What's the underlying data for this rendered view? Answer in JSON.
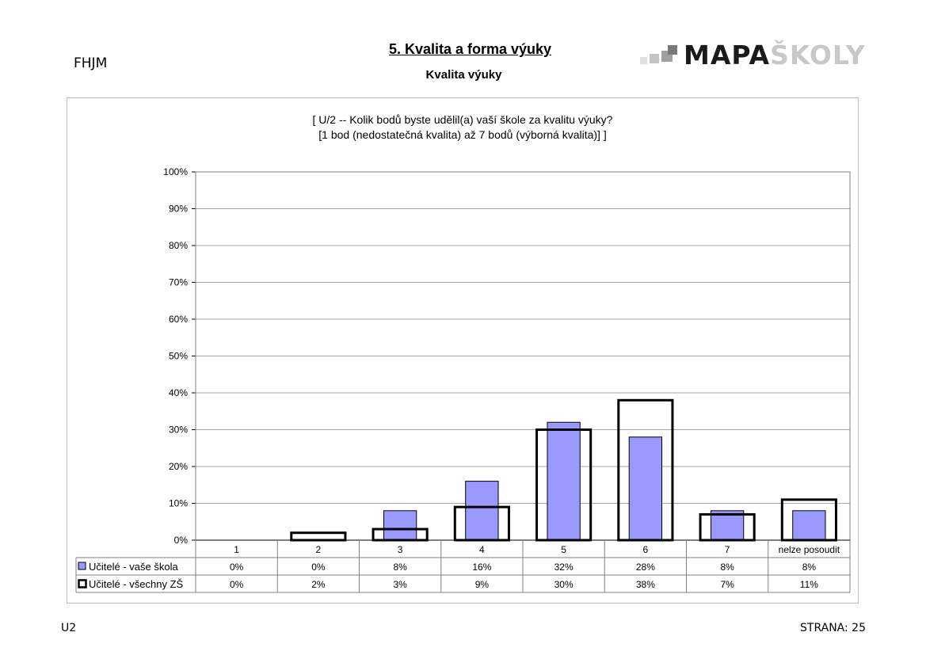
{
  "header": {
    "school_code": "FHJM",
    "section_title": "5. Kvalita a forma výuky",
    "subtitle": "Kvalita výuky",
    "logo": {
      "dark_text": "MAPA",
      "light_text": "ŠKOLY"
    }
  },
  "chart_data": {
    "type": "bar",
    "title": "[ U/2 -- Kolik bodů byste udělil(a) vaší škole za kvalitu výuky?",
    "subtitle": "[1 bod (nedostatečná kvalita) až 7 bodů (výborná kvalita)] ]",
    "categories": [
      "1",
      "2",
      "3",
      "4",
      "5",
      "6",
      "7",
      "nelze posoudit"
    ],
    "series": [
      {
        "name": "Učitelé - vaše škola",
        "values": [
          0,
          0,
          8,
          16,
          32,
          28,
          8,
          8
        ],
        "labels": [
          "0%",
          "0%",
          "8%",
          "16%",
          "32%",
          "28%",
          "8%",
          "8%"
        ],
        "color": "#9999ff",
        "style": "filled"
      },
      {
        "name": "Učitelé - všechny ZŠ",
        "values": [
          0,
          2,
          3,
          9,
          30,
          38,
          7,
          11
        ],
        "labels": [
          "0%",
          "2%",
          "3%",
          "9%",
          "30%",
          "38%",
          "7%",
          "11%"
        ],
        "color": "#000000",
        "style": "outline"
      }
    ],
    "ylim": [
      0,
      100
    ],
    "yticks": [
      "0%",
      "10%",
      "20%",
      "30%",
      "40%",
      "50%",
      "60%",
      "70%",
      "80%",
      "90%",
      "100%"
    ],
    "grid": true,
    "legend": "data-table"
  },
  "footer": {
    "left": "U2",
    "right": "STRANA: 25"
  }
}
